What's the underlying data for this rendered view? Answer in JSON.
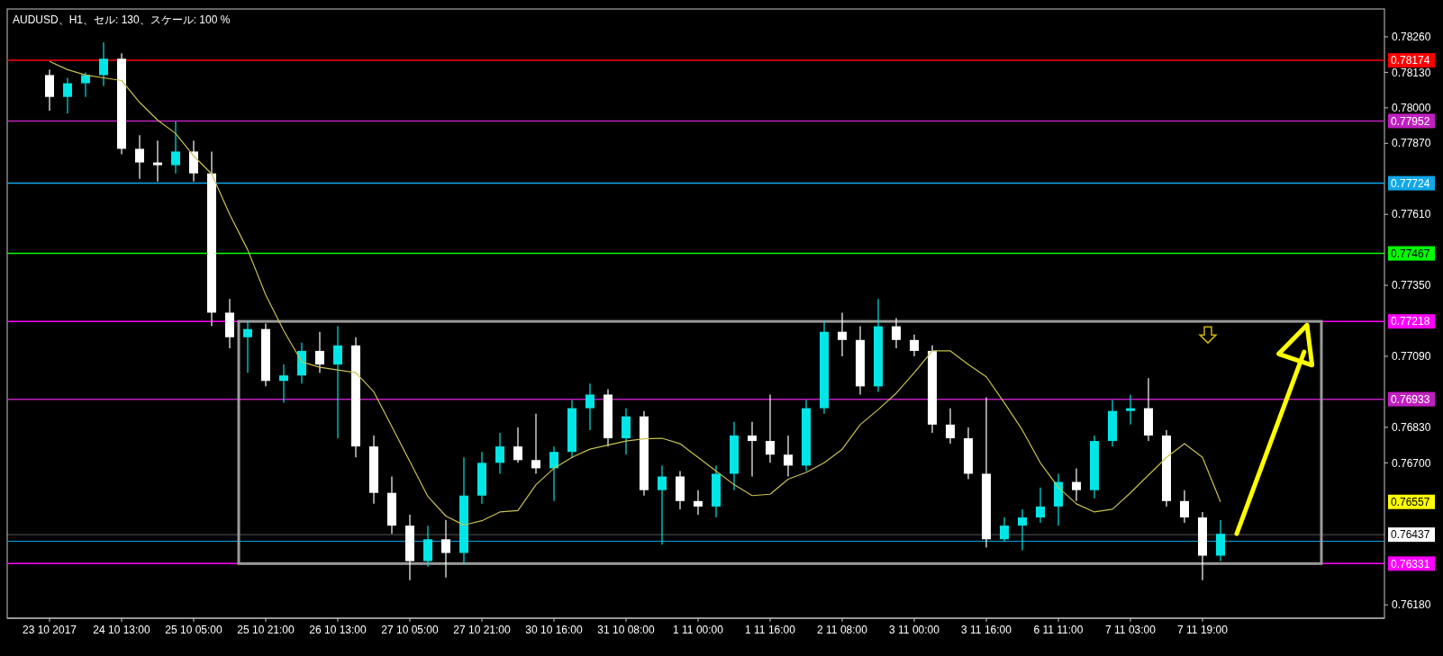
{
  "chart_data": {
    "type": "candlestick",
    "title": "AUDUSD、H1、セル: 130、スケール: 100 %",
    "categories": [
      "23 10 2017",
      null,
      null,
      null,
      "24 10 13:00",
      null,
      null,
      null,
      "25 10 05:00",
      null,
      null,
      null,
      "25 10 21:00",
      null,
      null,
      null,
      "26 10 13:00",
      null,
      null,
      null,
      "27 10 05:00",
      null,
      null,
      null,
      "27 10 21:00",
      null,
      null,
      null,
      "30 10 16:00",
      null,
      null,
      null,
      "31 10 08:00",
      null,
      null,
      null,
      "1 11 00:00",
      null,
      null,
      null,
      "1 11 16:00",
      null,
      null,
      null,
      "2 11 08:00",
      null,
      null,
      null,
      "3 11 00:00",
      null,
      null,
      null,
      "3 11 16:00",
      null,
      null,
      null,
      "6 11 11:00",
      null,
      null,
      null,
      "7 11 03:00",
      null,
      null,
      null,
      "7 11 19:00",
      null
    ],
    "ohlc": [
      [
        0.7812,
        0.7814,
        0.7799,
        0.7804
      ],
      [
        0.7804,
        0.7811,
        0.7798,
        0.7809
      ],
      [
        0.7809,
        0.7813,
        0.7804,
        0.7812
      ],
      [
        0.7812,
        0.7824,
        0.7808,
        0.7818
      ],
      [
        0.7818,
        0.782,
        0.7783,
        0.7785
      ],
      [
        0.7785,
        0.779,
        0.7774,
        0.778
      ],
      [
        0.778,
        0.7788,
        0.7773,
        0.7779
      ],
      [
        0.7779,
        0.7795,
        0.7776,
        0.7784
      ],
      [
        0.7784,
        0.7788,
        0.7773,
        0.7776
      ],
      [
        0.7776,
        0.7784,
        0.772,
        0.7725
      ],
      [
        0.7725,
        0.773,
        0.7712,
        0.7716
      ],
      [
        0.7716,
        0.7722,
        0.7703,
        0.7719
      ],
      [
        0.7719,
        0.7721,
        0.7698,
        0.77
      ],
      [
        0.77,
        0.7706,
        0.7692,
        0.7702
      ],
      [
        0.7702,
        0.7714,
        0.7699,
        0.7711
      ],
      [
        0.7711,
        0.7718,
        0.7703,
        0.7706
      ],
      [
        0.7706,
        0.772,
        0.7679,
        0.7713
      ],
      [
        0.7713,
        0.7716,
        0.7672,
        0.7676
      ],
      [
        0.7676,
        0.768,
        0.7655,
        0.7659
      ],
      [
        0.7659,
        0.7665,
        0.7644,
        0.7647
      ],
      [
        0.7647,
        0.7651,
        0.7627,
        0.7634
      ],
      [
        0.7634,
        0.7647,
        0.7632,
        0.7642
      ],
      [
        0.7642,
        0.7649,
        0.7628,
        0.7637
      ],
      [
        0.7637,
        0.7672,
        0.7633,
        0.7658
      ],
      [
        0.7658,
        0.7674,
        0.7655,
        0.767
      ],
      [
        0.767,
        0.7681,
        0.7666,
        0.7676
      ],
      [
        0.7676,
        0.7683,
        0.767,
        0.7671
      ],
      [
        0.7671,
        0.7688,
        0.7666,
        0.7668
      ],
      [
        0.7668,
        0.7676,
        0.7656,
        0.7674
      ],
      [
        0.7674,
        0.7693,
        0.7672,
        0.769
      ],
      [
        0.769,
        0.7699,
        0.7682,
        0.7695
      ],
      [
        0.7695,
        0.7697,
        0.7676,
        0.7679
      ],
      [
        0.7679,
        0.769,
        0.7673,
        0.7687
      ],
      [
        0.7687,
        0.7689,
        0.7658,
        0.766
      ],
      [
        0.766,
        0.7669,
        0.764,
        0.7665
      ],
      [
        0.7665,
        0.7667,
        0.7653,
        0.7656
      ],
      [
        0.7656,
        0.766,
        0.7651,
        0.7654
      ],
      [
        0.7654,
        0.7669,
        0.765,
        0.7666
      ],
      [
        0.7666,
        0.7685,
        0.766,
        0.768
      ],
      [
        0.768,
        0.7685,
        0.7665,
        0.7678
      ],
      [
        0.7678,
        0.7695,
        0.767,
        0.7673
      ],
      [
        0.7673,
        0.768,
        0.7665,
        0.7669
      ],
      [
        0.7669,
        0.7693,
        0.7667,
        0.769
      ],
      [
        0.769,
        0.7722,
        0.7688,
        0.7718
      ],
      [
        0.7718,
        0.7725,
        0.7709,
        0.7715
      ],
      [
        0.7715,
        0.772,
        0.7695,
        0.7698
      ],
      [
        0.7698,
        0.773,
        0.7696,
        0.772
      ],
      [
        0.772,
        0.7723,
        0.7712,
        0.7715
      ],
      [
        0.7715,
        0.7717,
        0.7709,
        0.7711
      ],
      [
        0.7711,
        0.7713,
        0.7681,
        0.7684
      ],
      [
        0.7684,
        0.769,
        0.7677,
        0.7679
      ],
      [
        0.7679,
        0.7683,
        0.7664,
        0.7666
      ],
      [
        0.7666,
        0.7694,
        0.7639,
        0.7642
      ],
      [
        0.7642,
        0.765,
        0.7641,
        0.7647
      ],
      [
        0.7647,
        0.7653,
        0.7638,
        0.765
      ],
      [
        0.765,
        0.7661,
        0.7648,
        0.7654
      ],
      [
        0.7654,
        0.7666,
        0.7647,
        0.7663
      ],
      [
        0.7663,
        0.7668,
        0.7656,
        0.766
      ],
      [
        0.766,
        0.768,
        0.7657,
        0.7678
      ],
      [
        0.7678,
        0.7693,
        0.7676,
        0.7689
      ],
      [
        0.7689,
        0.7695,
        0.7684,
        0.769
      ],
      [
        0.769,
        0.7701,
        0.7678,
        0.768
      ],
      [
        0.768,
        0.7682,
        0.7654,
        0.7656
      ],
      [
        0.7656,
        0.766,
        0.7648,
        0.765
      ],
      [
        0.765,
        0.7652,
        0.7627,
        0.7636
      ],
      [
        0.7636,
        0.7649,
        0.7634,
        0.7644
      ]
    ],
    "colors": [
      "#ffffff",
      "#00e5e5",
      "#00e5e5",
      "#00e5e5",
      "#ffffff",
      "#ffffff",
      "#ffffff",
      "#00e5e5",
      "#ffffff",
      "#ffffff",
      "#ffffff",
      "#00e5e5",
      "#ffffff",
      "#00e5e5",
      "#00e5e5",
      "#ffffff",
      "#00e5e5",
      "#ffffff",
      "#ffffff",
      "#ffffff",
      "#ffffff",
      "#00e5e5",
      "#ffffff",
      "#00e5e5",
      "#00e5e5",
      "#00e5e5",
      "#ffffff",
      "#ffffff",
      "#00e5e5",
      "#00e5e5",
      "#00e5e5",
      "#ffffff",
      "#00e5e5",
      "#ffffff",
      "#00e5e5",
      "#ffffff",
      "#ffffff",
      "#00e5e5",
      "#00e5e5",
      "#ffffff",
      "#ffffff",
      "#ffffff",
      "#00e5e5",
      "#00e5e5",
      "#ffffff",
      "#ffffff",
      "#00e5e5",
      "#ffffff",
      "#ffffff",
      "#ffffff",
      "#ffffff",
      "#ffffff",
      "#ffffff",
      "#00e5e5",
      "#00e5e5",
      "#00e5e5",
      "#00e5e5",
      "#ffffff",
      "#00e5e5",
      "#00e5e5",
      "#00e5e5",
      "#ffffff",
      "#ffffff",
      "#ffffff",
      "#ffffff",
      "#00e5e5"
    ],
    "series": [
      {
        "type": "line",
        "color": "#c8c050",
        "values": [
          0.7817,
          0.7814,
          0.7812,
          0.7811,
          0.781,
          0.7802,
          0.77955,
          0.77906,
          0.77824,
          0.77758,
          0.7761,
          0.7748,
          0.77315,
          0.77184,
          0.7707,
          0.7705,
          0.7704,
          0.7703,
          0.7696,
          0.76833,
          0.76705,
          0.76577,
          0.76505,
          0.76472,
          0.76488,
          0.7652,
          0.76525,
          0.7662,
          0.7668,
          0.7672,
          0.7675,
          0.76765,
          0.7678,
          0.76788,
          0.7679,
          0.7677,
          0.7672,
          0.7667,
          0.7662,
          0.7658,
          0.76585,
          0.7664,
          0.76665,
          0.767,
          0.7675,
          0.7684,
          0.76895,
          0.76955,
          0.7703,
          0.7711,
          0.7711,
          0.7706,
          0.77015,
          0.7692,
          0.7682,
          0.767,
          0.7661,
          0.7655,
          0.7652,
          0.7653,
          0.7659,
          0.76655,
          0.7672,
          0.7677,
          0.7672,
          0.76557
        ]
      }
    ],
    "ylim": [
      0.76131,
      0.78362
    ],
    "yticks": [
      {
        "value": 0.7826,
        "label": "0.78260"
      },
      {
        "value": 0.7813,
        "label": "0.78130"
      },
      {
        "value": 0.78,
        "label": "0.78000"
      },
      {
        "value": 0.7787,
        "label": "0.77870"
      },
      {
        "value": 0.7761,
        "label": "0.77610"
      },
      {
        "value": 0.7735,
        "label": "0.77350"
      },
      {
        "value": 0.7709,
        "label": "0.77090"
      },
      {
        "value": 0.7683,
        "label": "0.76830"
      },
      {
        "value": 0.767,
        "label": "0.76700"
      },
      {
        "value": 0.7618,
        "label": "0.76180"
      }
    ],
    "ref_lines": [
      {
        "axis": "y",
        "value": 0.78174,
        "label": "0.78174",
        "color": "#ff0000"
      },
      {
        "axis": "y",
        "value": 0.77952,
        "label": "0.77952",
        "color": "#c020c0"
      },
      {
        "axis": "y",
        "value": 0.77724,
        "label": "0.77724",
        "color": "#10a8e8"
      },
      {
        "axis": "y",
        "value": 0.77467,
        "label": "0.77467",
        "color": "#00ff00"
      },
      {
        "axis": "y",
        "value": 0.77218,
        "label": "0.77218",
        "color": "#ff00ff"
      },
      {
        "axis": "y",
        "value": 0.76933,
        "label": "0.76933",
        "color": "#c020c0"
      },
      {
        "axis": "y",
        "value": 0.76437,
        "label": "0.76437",
        "color": "#ffffff"
      },
      {
        "axis": "y",
        "value": 0.76413,
        "color": "#10a8e8"
      },
      {
        "axis": "y",
        "value": 0.76331,
        "label": "0.76331",
        "color": "#ff00ff"
      }
    ],
    "annotations": [
      "0.76557"
    ]
  }
}
